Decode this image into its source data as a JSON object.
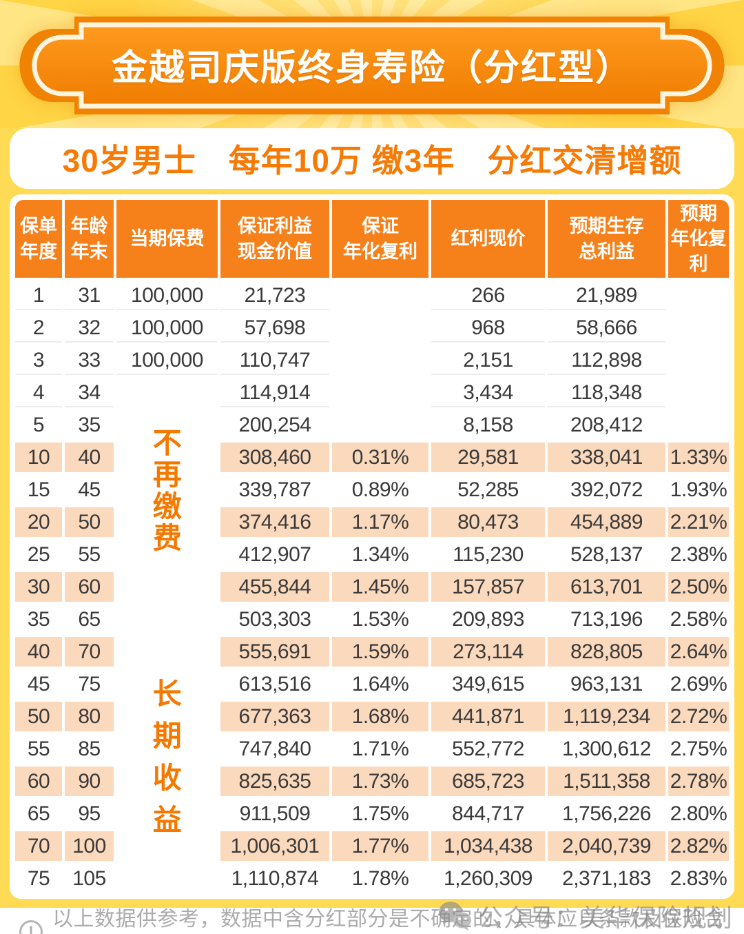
{
  "banner": {
    "title": "金越司庆版终身寿险（分红型）"
  },
  "subtitle": {
    "text": "30岁男士　每年10万 缴3年　分红交清增额"
  },
  "table": {
    "headers": [
      [
        "保单",
        "年度"
      ],
      [
        "年龄",
        "年末"
      ],
      [
        "当期保费"
      ],
      [
        "保证利益",
        "现金价值"
      ],
      [
        "保证",
        "年化复利"
      ],
      [
        "红利现价"
      ],
      [
        "预期生存",
        "总利益"
      ],
      [
        "预期",
        "年化复利"
      ]
    ],
    "merged_note_top": "不再缴费",
    "merged_note_bottom": "长期收益",
    "rows": [
      [
        "1",
        "31",
        "100,000",
        "21,723",
        "",
        "266",
        "21,989",
        ""
      ],
      [
        "2",
        "32",
        "100,000",
        "57,698",
        "",
        "968",
        "58,666",
        ""
      ],
      [
        "3",
        "33",
        "100,000",
        "110,747",
        "",
        "2,151",
        "112,898",
        ""
      ],
      [
        "4",
        "34",
        "",
        "114,914",
        "",
        "3,434",
        "118,348",
        ""
      ],
      [
        "5",
        "35",
        "",
        "200,254",
        "",
        "8,158",
        "208,412",
        ""
      ],
      [
        "10",
        "40",
        "",
        "308,460",
        "0.31%",
        "29,581",
        "338,041",
        "1.33%"
      ],
      [
        "15",
        "45",
        "",
        "339,787",
        "0.89%",
        "52,285",
        "392,072",
        "1.93%"
      ],
      [
        "20",
        "50",
        "",
        "374,416",
        "1.17%",
        "80,473",
        "454,889",
        "2.21%"
      ],
      [
        "25",
        "55",
        "",
        "412,907",
        "1.34%",
        "115,230",
        "528,137",
        "2.38%"
      ],
      [
        "30",
        "60",
        "",
        "455,844",
        "1.45%",
        "157,857",
        "613,701",
        "2.50%"
      ],
      [
        "35",
        "65",
        "",
        "503,303",
        "1.53%",
        "209,893",
        "713,196",
        "2.58%"
      ],
      [
        "40",
        "70",
        "",
        "555,691",
        "1.59%",
        "273,114",
        "828,805",
        "2.64%"
      ],
      [
        "45",
        "75",
        "",
        "613,516",
        "1.64%",
        "349,615",
        "963,131",
        "2.69%"
      ],
      [
        "50",
        "80",
        "",
        "677,363",
        "1.68%",
        "441,871",
        "1,119,234",
        "2.72%"
      ],
      [
        "55",
        "85",
        "",
        "747,840",
        "1.71%",
        "552,772",
        "1,300,612",
        "2.75%"
      ],
      [
        "60",
        "90",
        "",
        "825,635",
        "1.73%",
        "685,723",
        "1,511,358",
        "2.78%"
      ],
      [
        "65",
        "95",
        "",
        "911,509",
        "1.75%",
        "844,717",
        "1,756,226",
        "2.80%"
      ],
      [
        "70",
        "100",
        "",
        "1,006,301",
        "1.77%",
        "1,034,438",
        "2,040,739",
        "2.82%"
      ],
      [
        "75",
        "105",
        "",
        "1,110,874",
        "1.78%",
        "1,260,309",
        "2,371,183",
        "2.83%"
      ]
    ]
  },
  "footer": {
    "warning_glyph": "!",
    "disclaimer": "以上数据供参考，数据中含分红部分是不确定的，具体应以条款及保险合同为准。",
    "watermark": "公众号：美华保险规划"
  },
  "colors": {
    "accent_orange": "#F6801A",
    "deep_orange_frame": "#F08204",
    "row_peach": "#FBD9BD",
    "page_yellow": "#FFDB55",
    "ray_light": "#FFE584",
    "ray_dark": "#FFD445",
    "text_dark": "#3A3A3A",
    "text_gray": "#ABABAB"
  }
}
